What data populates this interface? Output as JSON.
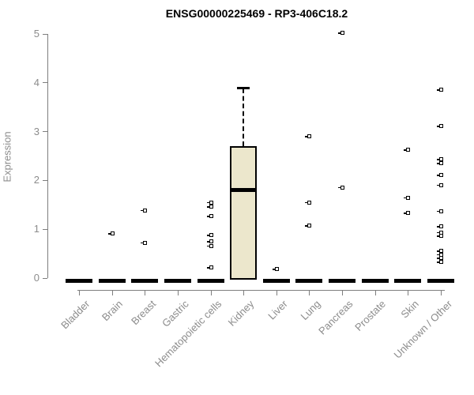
{
  "title": "ENSG00000225469 - RP3-406C18.2",
  "colors": {
    "box_fill": "#ECE7CC",
    "box_stroke": "#000000",
    "axis": "#7e7e7e",
    "tick_label": "#8c8c8c",
    "background": "#ffffff"
  },
  "chart_data": {
    "type": "boxplot",
    "title": "ENSG00000225469 - RP3-406C18.2",
    "xlabel": "",
    "ylabel": "Expression",
    "ylim": [
      0,
      5
    ],
    "yticks": [
      0,
      1,
      2,
      3,
      4,
      5
    ],
    "grid": false,
    "legend": false,
    "categories": [
      "Bladder",
      "Brain",
      "Breast",
      "Gastric",
      "Hematopoietic cells",
      "Kidney",
      "Liver",
      "Lung",
      "Pancreas",
      "Prostate",
      "Skin",
      "Unknown / Other"
    ],
    "boxes": [
      {
        "category": "Bladder",
        "q1": 0,
        "median": 0,
        "q3": 0,
        "whisker_low": 0,
        "whisker_high": 0,
        "outliers": []
      },
      {
        "category": "Brain",
        "q1": 0,
        "median": 0,
        "q3": 0,
        "whisker_low": 0,
        "whisker_high": 0,
        "outliers": [
          0.9
        ]
      },
      {
        "category": "Breast",
        "q1": 0,
        "median": 0,
        "q3": 0,
        "whisker_low": 0,
        "whisker_high": 0,
        "outliers": [
          1.38,
          0.72
        ]
      },
      {
        "category": "Gastric",
        "q1": 0,
        "median": 0,
        "q3": 0,
        "whisker_low": 0,
        "whisker_high": 0,
        "outliers": []
      },
      {
        "category": "Hematopoietic cells",
        "q1": 0,
        "median": 0,
        "q3": 0,
        "whisker_low": 0,
        "whisker_high": 0,
        "outliers": [
          1.54,
          1.45,
          1.26,
          0.87,
          0.74,
          0.65,
          0.21
        ]
      },
      {
        "category": "Kidney",
        "q1": 0,
        "median": 1.8,
        "q3": 2.7,
        "whisker_low": 0,
        "whisker_high": 3.88,
        "outliers": []
      },
      {
        "category": "Liver",
        "q1": 0,
        "median": 0,
        "q3": 0,
        "whisker_low": 0,
        "whisker_high": 0,
        "outliers": [
          0.17
        ]
      },
      {
        "category": "Lung",
        "q1": 0,
        "median": 0,
        "q3": 0,
        "whisker_low": 0,
        "whisker_high": 0,
        "outliers": [
          2.89,
          1.54,
          1.06
        ]
      },
      {
        "category": "Pancreas",
        "q1": 0,
        "median": 0,
        "q3": 0,
        "whisker_low": 0,
        "whisker_high": 0,
        "outliers": [
          5.01,
          1.85
        ]
      },
      {
        "category": "Prostate",
        "q1": 0,
        "median": 0,
        "q3": 0,
        "whisker_low": 0,
        "whisker_high": 0,
        "outliers": []
      },
      {
        "category": "Skin",
        "q1": 0,
        "median": 0,
        "q3": 0,
        "whisker_low": 0,
        "whisker_high": 0,
        "outliers": [
          2.62,
          1.64,
          1.32
        ]
      },
      {
        "category": "Unknown / Other",
        "q1": 0,
        "median": 0,
        "q3": 0,
        "whisker_low": 0,
        "whisker_high": 0,
        "outliers": [
          3.85,
          3.1,
          2.42,
          2.34,
          2.1,
          1.9,
          1.36,
          1.05,
          0.93,
          0.85,
          0.55,
          0.47,
          0.4,
          0.32
        ]
      }
    ]
  }
}
